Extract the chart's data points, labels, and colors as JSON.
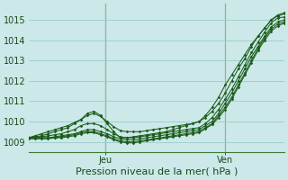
{
  "xlabel": "Pression niveau de la mer( hPa )",
  "bg_color": "#cce8e8",
  "grid_color": "#99cccc",
  "line_color": "#1a5c1a",
  "ylim": [
    1008.5,
    1015.8
  ],
  "yticks": [
    1009,
    1010,
    1011,
    1012,
    1013,
    1014,
    1015
  ],
  "xtick_labels": [
    "Jeu",
    "Ven"
  ],
  "xtick_positions": [
    0.3,
    0.77
  ],
  "lines": [
    {
      "y": [
        1009.2,
        1009.25,
        1009.3,
        1009.4,
        1009.5,
        1009.6,
        1009.7,
        1009.9,
        1010.1,
        1010.4,
        1010.5,
        1010.3,
        1009.9,
        1009.5,
        1009.2,
        1009.2,
        1009.25,
        1009.3,
        1009.35,
        1009.4,
        1009.45,
        1009.5,
        1009.6,
        1009.7,
        1009.8,
        1009.9,
        1010.0,
        1010.3,
        1010.7,
        1011.2,
        1011.8,
        1012.3,
        1012.8,
        1013.3,
        1013.8,
        1014.2,
        1014.6,
        1015.0,
        1015.2,
        1015.3
      ]
    },
    {
      "y": [
        1009.2,
        1009.2,
        1009.25,
        1009.3,
        1009.35,
        1009.4,
        1009.5,
        1009.6,
        1009.8,
        1009.9,
        1009.9,
        1009.8,
        1009.6,
        1009.4,
        1009.25,
        1009.2,
        1009.2,
        1009.25,
        1009.3,
        1009.35,
        1009.4,
        1009.45,
        1009.5,
        1009.55,
        1009.6,
        1009.65,
        1009.7,
        1009.9,
        1010.2,
        1010.6,
        1011.1,
        1011.6,
        1012.2,
        1012.8,
        1013.4,
        1013.9,
        1014.4,
        1014.85,
        1015.1,
        1015.15
      ]
    },
    {
      "y": [
        1009.2,
        1009.2,
        1009.2,
        1009.2,
        1009.25,
        1009.3,
        1009.35,
        1009.4,
        1009.5,
        1009.6,
        1009.6,
        1009.5,
        1009.4,
        1009.25,
        1009.15,
        1009.1,
        1009.1,
        1009.15,
        1009.2,
        1009.25,
        1009.3,
        1009.35,
        1009.4,
        1009.45,
        1009.5,
        1009.55,
        1009.6,
        1009.8,
        1010.0,
        1010.4,
        1010.9,
        1011.4,
        1012.0,
        1012.6,
        1013.2,
        1013.7,
        1014.2,
        1014.65,
        1014.9,
        1015.0
      ]
    },
    {
      "y": [
        1009.2,
        1009.2,
        1009.2,
        1009.2,
        1009.2,
        1009.25,
        1009.3,
        1009.35,
        1009.45,
        1009.5,
        1009.5,
        1009.4,
        1009.3,
        1009.15,
        1009.05,
        1009.0,
        1009.0,
        1009.05,
        1009.1,
        1009.15,
        1009.2,
        1009.25,
        1009.3,
        1009.35,
        1009.4,
        1009.45,
        1009.5,
        1009.7,
        1009.9,
        1010.3,
        1010.7,
        1011.2,
        1011.8,
        1012.4,
        1013.0,
        1013.6,
        1014.1,
        1014.55,
        1014.8,
        1014.9
      ]
    },
    {
      "y": [
        1009.15,
        1009.15,
        1009.15,
        1009.15,
        1009.2,
        1009.2,
        1009.25,
        1009.3,
        1009.4,
        1009.45,
        1009.45,
        1009.35,
        1009.25,
        1009.1,
        1009.0,
        1008.95,
        1008.95,
        1009.0,
        1009.05,
        1009.1,
        1009.15,
        1009.2,
        1009.25,
        1009.3,
        1009.35,
        1009.4,
        1009.45,
        1009.65,
        1009.85,
        1010.2,
        1010.6,
        1011.1,
        1011.7,
        1012.3,
        1012.9,
        1013.5,
        1014.0,
        1014.45,
        1014.7,
        1014.85
      ]
    },
    {
      "y": [
        1009.2,
        1009.3,
        1009.4,
        1009.5,
        1009.6,
        1009.7,
        1009.8,
        1009.95,
        1010.1,
        1010.3,
        1010.4,
        1010.25,
        1010.0,
        1009.75,
        1009.55,
        1009.5,
        1009.5,
        1009.5,
        1009.55,
        1009.6,
        1009.65,
        1009.7,
        1009.75,
        1009.8,
        1009.85,
        1009.9,
        1010.0,
        1010.2,
        1010.5,
        1010.9,
        1011.4,
        1012.0,
        1012.6,
        1013.1,
        1013.7,
        1014.2,
        1014.6,
        1015.0,
        1015.25,
        1015.35
      ]
    }
  ]
}
